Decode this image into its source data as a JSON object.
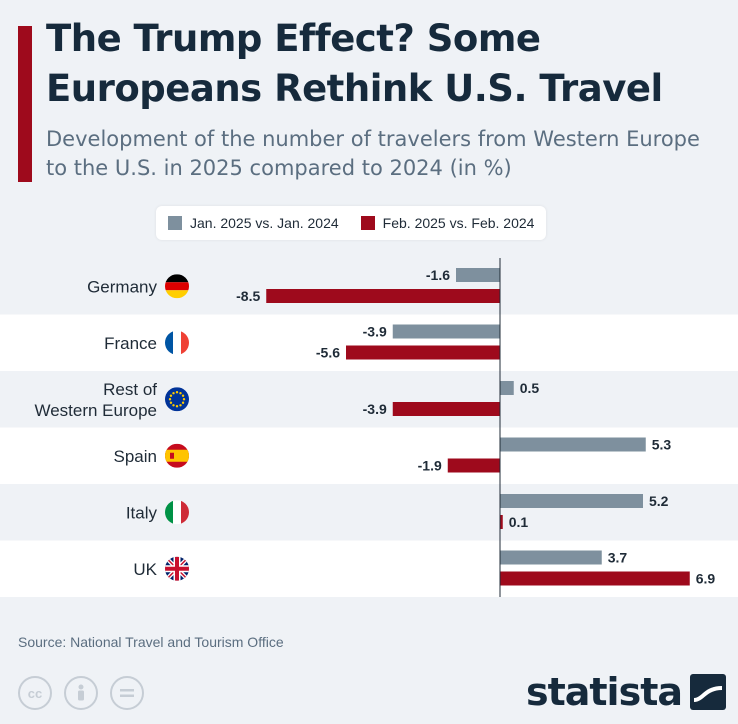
{
  "header": {
    "title": "The Trump Effect? Some Europeans Rethink U.S. Travel",
    "subtitle": "Development of the number of travelers from Western Europe to the U.S. in 2025 compared to 2024 (in %)"
  },
  "legend": {
    "items": [
      {
        "label": "Jan. 2025 vs. Jan. 2024",
        "color": "#7e909e"
      },
      {
        "label": "Feb. 2025 vs. Feb. 2024",
        "color": "#9e0a1c"
      }
    ]
  },
  "chart_data": {
    "type": "bar",
    "orientation": "horizontal",
    "categories": [
      "Germany",
      "France",
      "Rest of Western Europe",
      "Spain",
      "Italy",
      "UK"
    ],
    "category_flags": [
      "germany-flag-icon",
      "france-flag-icon",
      "eu-flag-icon",
      "spain-flag-icon",
      "italy-flag-icon",
      "uk-flag-icon"
    ],
    "series": [
      {
        "name": "Jan. 2025 vs. Jan. 2024",
        "values": [
          -1.6,
          -3.9,
          0.5,
          5.3,
          5.2,
          3.7
        ],
        "color": "#7e909e"
      },
      {
        "name": "Feb. 2025 vs. Feb. 2024",
        "values": [
          -8.5,
          -5.6,
          -3.9,
          -1.9,
          0.1,
          6.9
        ],
        "color": "#9e0a1c"
      }
    ],
    "xlim": [
      -8.5,
      6.9
    ],
    "grid": false,
    "legend_position": "top"
  },
  "footer": {
    "source": "Source: National Travel and Tourism Office",
    "license_icons": [
      "creative-commons-icon",
      "attribution-icon",
      "no-derivatives-icon"
    ],
    "logo": "statista"
  }
}
